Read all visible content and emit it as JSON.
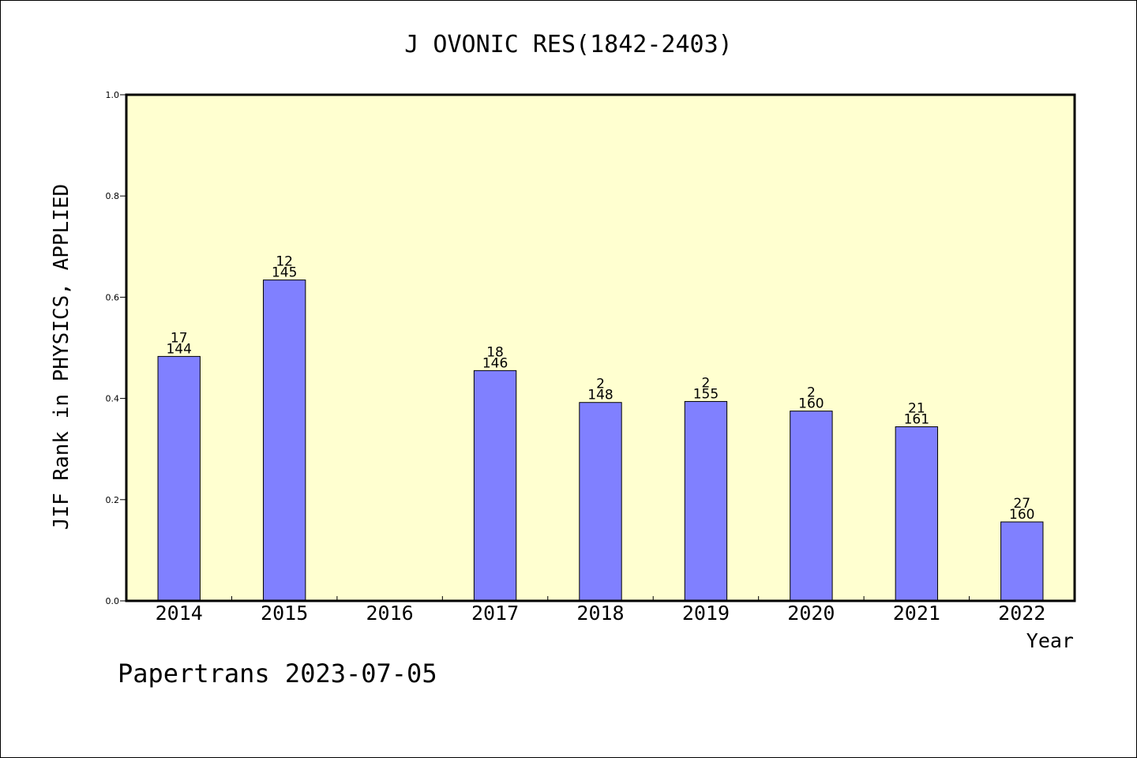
{
  "chart_data": {
    "type": "bar",
    "title": "J OVONIC RES(1842-2403)",
    "xlabel": "Year",
    "ylabel": "JIF Rank in PHYSICS, APPLIED",
    "ylim": [
      0,
      1.0
    ],
    "y_ticks": [
      "0.0",
      "0.2",
      "0.4",
      "0.6",
      "0.8",
      "1.0"
    ],
    "categories": [
      "2014",
      "2015",
      "2016",
      "2017",
      "2018",
      "2019",
      "2020",
      "2021",
      "2022"
    ],
    "values": [
      0.483,
      0.634,
      null,
      0.455,
      0.392,
      0.394,
      0.375,
      0.344,
      0.156
    ],
    "bar_labels": [
      {
        "rank": "17",
        "total": "144"
      },
      {
        "rank": "12",
        "total": "145"
      },
      null,
      {
        "rank": "18",
        "total": "146"
      },
      {
        "rank": "2",
        "total": "148"
      },
      {
        "rank": "2",
        "total": "155"
      },
      {
        "rank": "2",
        "total": "160"
      },
      {
        "rank": "21",
        "total": "161"
      },
      {
        "rank": "27",
        "total": "160"
      }
    ],
    "grid": false,
    "colors": {
      "plot_background": "#ffffd0",
      "bar_fill": "#8080ff",
      "bar_stroke": "#000000"
    }
  },
  "footer": {
    "watermark": "Papertrans 2023-07-05"
  }
}
